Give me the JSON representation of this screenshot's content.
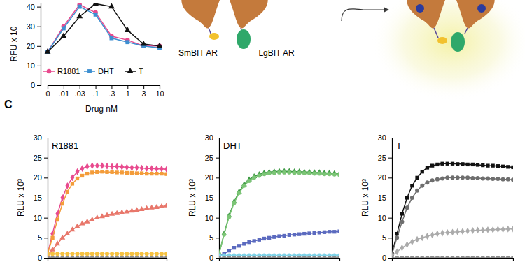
{
  "panel_label": "C",
  "diagram": {
    "labels": [
      "SmBIT AR",
      "LgBIT AR"
    ]
  },
  "chart_data": [
    {
      "type": "line",
      "x_label": "Drug nM",
      "y_label": "RFU x 10",
      "categories": [
        "0",
        ".01",
        ".03",
        ".1",
        ".3",
        "1",
        "3",
        "10"
      ],
      "ylim": [
        0,
        42
      ],
      "yticks": [
        0,
        10,
        20,
        30,
        40
      ],
      "legend": "bottom left",
      "series": [
        {
          "name": "R1881",
          "color": "#e84a8e",
          "marker": "circle",
          "values": [
            17,
            30,
            41,
            37,
            25,
            23,
            20,
            20
          ]
        },
        {
          "name": "DHT",
          "color": "#3d8fd1",
          "marker": "square",
          "values": [
            17,
            29,
            40,
            36,
            24,
            22,
            20,
            19
          ]
        },
        {
          "name": "T",
          "color": "#111111",
          "marker": "triangle",
          "values": [
            17,
            25,
            35,
            41.5,
            40,
            28,
            21,
            20
          ]
        }
      ]
    },
    {
      "type": "line",
      "title": "R1881",
      "y_label": "RLU x 10³",
      "x": [
        0,
        1,
        2,
        3,
        4,
        5,
        6,
        7,
        8,
        9,
        10,
        11,
        12,
        13,
        14,
        15,
        16,
        17,
        18,
        19,
        20,
        21,
        22,
        23,
        24
      ],
      "xlim": [
        0,
        24
      ],
      "ylim": [
        0,
        30
      ],
      "yticks": [
        0,
        5,
        10,
        15,
        20,
        25,
        30
      ],
      "tick_labels": "y",
      "series": [
        {
          "color": "#e84a8e",
          "marker": "diamond",
          "values": [
            1,
            6,
            11,
            15,
            18,
            20,
            21.5,
            22.3,
            22.8,
            23,
            23,
            23,
            22.9,
            22.8,
            22.8,
            22.7,
            22.6,
            22.5,
            22.5,
            22.4,
            22.3,
            22.3,
            22.2,
            22.2,
            22.1
          ]
        },
        {
          "color": "#f39c3a",
          "marker": "square",
          "values": [
            1,
            5,
            9.5,
            13.5,
            16.5,
            18.5,
            19.8,
            20.5,
            21,
            21.3,
            21.4,
            21.5,
            21.4,
            21.4,
            21.3,
            21.3,
            21.2,
            21.2,
            21.1,
            21.1,
            21,
            21,
            21,
            21,
            20.9
          ]
        },
        {
          "color": "#e8776b",
          "marker": "triangle",
          "values": [
            0.5,
            2,
            3.5,
            5,
            6,
            7,
            7.8,
            8.5,
            9,
            9.5,
            10,
            10.3,
            10.6,
            10.9,
            11.1,
            11.3,
            11.5,
            11.7,
            11.9,
            12.1,
            12.3,
            12.5,
            12.6,
            12.8,
            13
          ]
        },
        {
          "color": "#f5c242",
          "marker": "circle",
          "values": [
            1,
            1,
            1,
            1,
            1,
            1,
            1,
            1,
            1,
            1,
            1,
            1,
            1,
            1,
            1,
            1,
            1,
            1,
            1,
            1,
            1,
            1,
            1,
            1,
            1
          ]
        },
        {
          "color": "#8c8c8c",
          "marker": "circle",
          "values": [
            0,
            0,
            0,
            0,
            0,
            0,
            0,
            0,
            0,
            0,
            0,
            0,
            0,
            0,
            0,
            0,
            0,
            0,
            0,
            0,
            0,
            0,
            0,
            0,
            0
          ]
        }
      ]
    },
    {
      "type": "line",
      "title": "DHT",
      "y_label": "RLU x 10³",
      "x": [
        0,
        1,
        2,
        3,
        4,
        5,
        6,
        7,
        8,
        9,
        10,
        11,
        12,
        13,
        14,
        15,
        16,
        17,
        18,
        19,
        20,
        21,
        22,
        23,
        24
      ],
      "xlim": [
        0,
        24
      ],
      "ylim": [
        0,
        30
      ],
      "yticks": [
        0,
        5,
        10,
        15,
        20,
        25,
        30
      ],
      "tick_labels": "y",
      "series": [
        {
          "color": "#3f9a45",
          "marker": "triangle",
          "values": [
            1,
            6,
            10.5,
            14,
            16.5,
            18.3,
            19.5,
            20.3,
            20.8,
            21.2,
            21.4,
            21.5,
            21.6,
            21.6,
            21.6,
            21.5,
            21.5,
            21.4,
            21.4,
            21.3,
            21.3,
            21.2,
            21.2,
            21.1,
            21
          ]
        },
        {
          "color": "#7cc576",
          "marker": "circle",
          "values": [
            1,
            5.8,
            10.2,
            13.7,
            16.2,
            18,
            19.2,
            20,
            20.5,
            20.9,
            21.1,
            21.2,
            21.3,
            21.3,
            21.3,
            21.2,
            21.2,
            21.1,
            21.1,
            21,
            21,
            20.9,
            20.9,
            20.8,
            20.7
          ]
        },
        {
          "color": "#5b6abf",
          "marker": "square",
          "values": [
            0.3,
            1,
            1.8,
            2.5,
            3,
            3.5,
            3.9,
            4.2,
            4.5,
            4.8,
            5,
            5.2,
            5.4,
            5.5,
            5.7,
            5.8,
            5.9,
            6,
            6.1,
            6.2,
            6.3,
            6.4,
            6.5,
            6.5,
            6.6
          ]
        },
        {
          "color": "#7fd3e8",
          "marker": "circle",
          "values": [
            0.6,
            0.6,
            0.6,
            0.6,
            0.6,
            0.6,
            0.6,
            0.6,
            0.6,
            0.6,
            0.6,
            0.6,
            0.6,
            0.6,
            0.6,
            0.6,
            0.6,
            0.6,
            0.6,
            0.6,
            0.6,
            0.6,
            0.6,
            0.6,
            0.6
          ]
        },
        {
          "color": "#8c8c8c",
          "marker": "circle",
          "values": [
            0,
            0,
            0,
            0,
            0,
            0,
            0,
            0,
            0,
            0,
            0,
            0,
            0,
            0,
            0,
            0,
            0,
            0,
            0,
            0,
            0,
            0,
            0,
            0,
            0
          ]
        }
      ]
    },
    {
      "type": "line",
      "title": "T",
      "y_label": "RLU x 10³",
      "x": [
        0,
        1,
        2,
        3,
        4,
        5,
        6,
        7,
        8,
        9,
        10,
        11,
        12,
        13,
        14,
        15,
        16,
        17,
        18,
        19,
        20,
        21,
        22,
        23,
        24
      ],
      "xlim": [
        0,
        24
      ],
      "ylim": [
        0,
        30
      ],
      "yticks": [
        0,
        5,
        10,
        15,
        20,
        25,
        30
      ],
      "tick_labels": "y",
      "series": [
        {
          "color": "#111111",
          "marker": "square",
          "values": [
            1,
            6,
            11,
            15,
            18,
            20,
            21.5,
            22.5,
            23,
            23.3,
            23.5,
            23.5,
            23.5,
            23.4,
            23.4,
            23.3,
            23.3,
            23.2,
            23.1,
            23,
            23,
            22.9,
            22.8,
            22.7,
            22.6
          ]
        },
        {
          "color": "#6e6e6e",
          "marker": "circle",
          "values": [
            1,
            5,
            9,
            12.5,
            15,
            16.8,
            18,
            18.8,
            19.3,
            19.6,
            19.8,
            20,
            20,
            20,
            20,
            20,
            19.9,
            19.9,
            19.8,
            19.8,
            19.7,
            19.7,
            19.6,
            19.6,
            19.5
          ]
        },
        {
          "color": "#ababab",
          "marker": "diamond",
          "values": [
            0.5,
            1.5,
            2.5,
            3.3,
            4,
            4.6,
            5,
            5.4,
            5.7,
            6,
            6.2,
            6.3,
            6.4,
            6.5,
            6.6,
            6.7,
            6.8,
            6.9,
            6.9,
            7,
            7,
            7.1,
            7.1,
            7.2,
            7.2
          ]
        },
        {
          "color": "#8c8c8c",
          "marker": "circle",
          "values": [
            0,
            0,
            0,
            0,
            0,
            0,
            0,
            0,
            0,
            0,
            0,
            0,
            0,
            0,
            0,
            0,
            0,
            0,
            0,
            0,
            0,
            0,
            0,
            0,
            0
          ]
        }
      ]
    }
  ]
}
